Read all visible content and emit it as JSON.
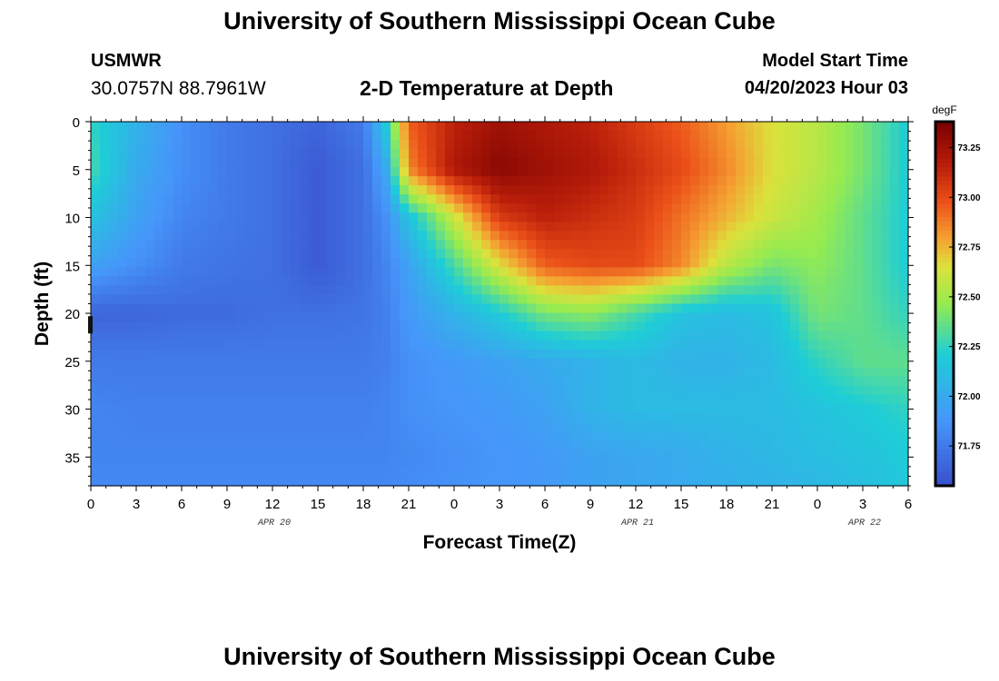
{
  "header": {
    "title": "University of Southern Mississippi Ocean Cube",
    "station": "USMWR",
    "coords": "30.0757N  88.7961W",
    "subtitle": "2-D Temperature at Depth",
    "model_start_label": "Model Start Time",
    "model_start_value": "04/20/2023 Hour 03"
  },
  "footer": {
    "title": "University of Southern Mississippi Ocean Cube"
  },
  "chart_data": {
    "type": "heatmap",
    "title": "2-D Temperature at Depth",
    "xlabel": "Forecast Time(Z)",
    "ylabel": "Depth (ft)",
    "x_range_hours": [
      0,
      54
    ],
    "x_tick_labels": [
      "0",
      "3",
      "6",
      "9",
      "12",
      "15",
      "18",
      "21",
      "0",
      "3",
      "6",
      "9",
      "12",
      "15",
      "18",
      "21",
      "0",
      "3",
      "6"
    ],
    "date_labels": [
      {
        "label": "APR 20",
        "hour": 12
      },
      {
        "label": "APR 21",
        "hour": 36
      },
      {
        "label": "APR 22",
        "hour": 51
      }
    ],
    "y_range_ft": [
      0,
      38
    ],
    "y_ticks": [
      0,
      5,
      10,
      15,
      20,
      25,
      30,
      35
    ],
    "colorbar": {
      "unit": "degF",
      "range": [
        71.55,
        73.38
      ],
      "ticks": [
        71.75,
        72.0,
        72.25,
        72.5,
        72.75,
        73.0,
        73.25
      ],
      "tick_labels": [
        "71.75",
        "72.00",
        "72.25",
        "72.50",
        "72.75",
        "73.00",
        "73.25"
      ]
    },
    "depth_rows_ft": [
      0,
      5,
      10,
      15,
      20,
      25,
      30,
      35,
      38
    ],
    "time_cols_hours": [
      0,
      3,
      6,
      9,
      12,
      15,
      18,
      19.5,
      21,
      24,
      27,
      30,
      33,
      36,
      39,
      42,
      45,
      48,
      51,
      54
    ],
    "temperature_degF": [
      [
        72.25,
        72.05,
        71.85,
        71.75,
        71.7,
        71.65,
        71.75,
        72.2,
        72.95,
        73.15,
        73.25,
        73.2,
        73.15,
        73.05,
        72.95,
        72.8,
        72.65,
        72.55,
        72.4,
        72.2
      ],
      [
        72.3,
        72.0,
        71.85,
        71.75,
        71.7,
        71.6,
        71.7,
        72.0,
        72.85,
        73.2,
        73.32,
        73.25,
        73.2,
        73.1,
        73.0,
        72.85,
        72.65,
        72.55,
        72.4,
        72.2
      ],
      [
        72.15,
        71.95,
        71.8,
        71.75,
        71.7,
        71.6,
        71.7,
        71.85,
        72.15,
        72.6,
        73.05,
        73.15,
        73.1,
        73.05,
        72.9,
        72.75,
        72.6,
        72.5,
        72.35,
        72.2
      ],
      [
        71.95,
        71.85,
        71.75,
        71.72,
        71.7,
        71.6,
        71.7,
        71.8,
        71.95,
        72.3,
        72.65,
        72.95,
        73.0,
        73.0,
        72.85,
        72.55,
        72.4,
        72.45,
        72.35,
        72.2
      ],
      [
        71.65,
        71.65,
        71.68,
        71.68,
        71.7,
        71.7,
        71.72,
        71.78,
        71.9,
        72.05,
        72.2,
        72.4,
        72.45,
        72.3,
        72.15,
        72.1,
        72.15,
        72.4,
        72.35,
        72.25
      ],
      [
        71.75,
        71.75,
        71.75,
        71.75,
        71.75,
        71.75,
        71.75,
        71.78,
        71.85,
        71.9,
        71.95,
        72.0,
        72.05,
        72.1,
        72.05,
        72.05,
        72.1,
        72.25,
        72.35,
        72.35
      ],
      [
        71.8,
        71.78,
        71.78,
        71.78,
        71.78,
        71.78,
        71.78,
        71.8,
        71.85,
        71.88,
        71.9,
        71.95,
        72.05,
        72.1,
        72.1,
        72.1,
        72.1,
        72.15,
        72.2,
        72.25
      ],
      [
        71.8,
        71.8,
        71.8,
        71.8,
        71.8,
        71.8,
        71.8,
        71.8,
        71.82,
        71.85,
        71.88,
        71.9,
        71.95,
        71.98,
        72.0,
        72.05,
        72.08,
        72.12,
        72.15,
        72.2
      ],
      [
        71.82,
        71.82,
        71.82,
        71.82,
        71.82,
        71.82,
        71.82,
        71.82,
        71.84,
        71.86,
        71.88,
        71.9,
        71.95,
        71.98,
        72.0,
        72.03,
        72.05,
        72.08,
        72.12,
        72.18
      ]
    ]
  }
}
